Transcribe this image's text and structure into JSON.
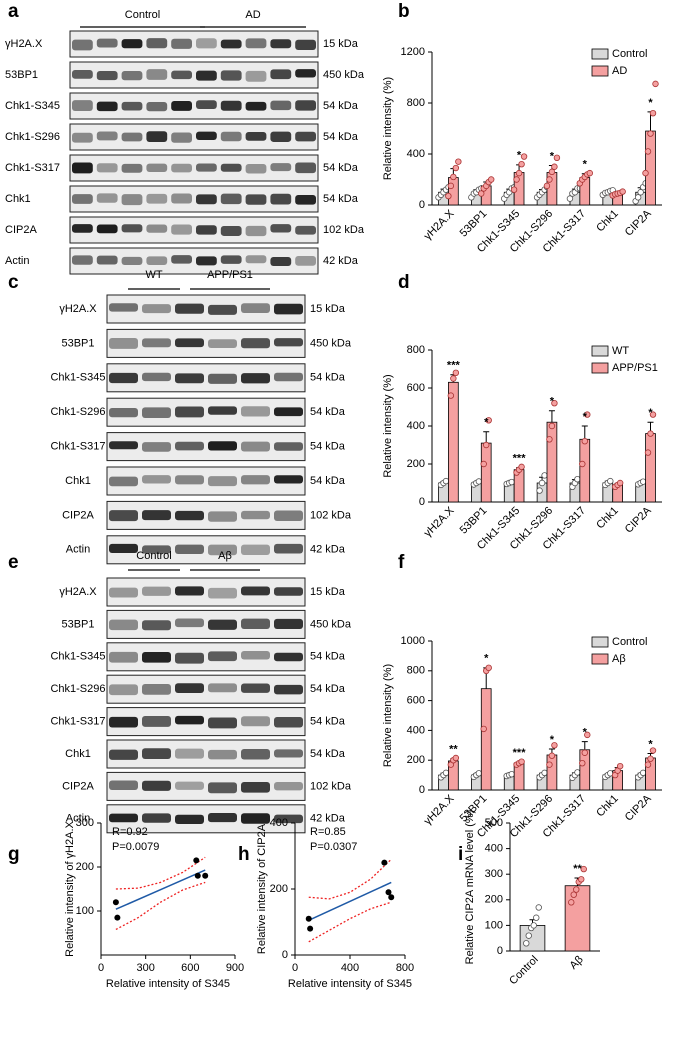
{
  "panel_letters": [
    "a",
    "b",
    "c",
    "d",
    "e",
    "f",
    "g",
    "h",
    "i"
  ],
  "blots": [
    {
      "group_labels": [
        "Control",
        "AD"
      ],
      "rows": [
        {
          "label": "γH2A.X",
          "size": "15 kDa"
        },
        {
          "label": "53BP1",
          "size": "450 kDa"
        },
        {
          "label": "Chk1-S345",
          "size": "54 kDa"
        },
        {
          "label": "Chk1-S296",
          "size": "54 kDa"
        },
        {
          "label": "Chk1-S317",
          "size": "54 kDa"
        },
        {
          "label": "Chk1",
          "size": "54 kDa"
        },
        {
          "label": "CIP2A",
          "size": "102 kDa"
        },
        {
          "label": "Actin",
          "size": "42 kDa"
        }
      ]
    },
    {
      "group_labels": [
        "WT",
        "APP/PS1"
      ],
      "rows": [
        {
          "label": "γH2A.X",
          "size": "15 kDa"
        },
        {
          "label": "53BP1",
          "size": "450 kDa"
        },
        {
          "label": "Chk1-S345",
          "size": "54 kDa"
        },
        {
          "label": "Chk1-S296",
          "size": "54 kDa"
        },
        {
          "label": "Chk1-S317",
          "size": "54 kDa"
        },
        {
          "label": "Chk1",
          "size": "54 kDa"
        },
        {
          "label": "CIP2A",
          "size": "102 kDa"
        },
        {
          "label": "Actin",
          "size": "42 kDa"
        }
      ]
    },
    {
      "group_labels": [
        "Control",
        "Aβ"
      ],
      "rows": [
        {
          "label": "γH2A.X",
          "size": "15 kDa"
        },
        {
          "label": "53BP1",
          "size": "450 kDa"
        },
        {
          "label": "Chk1-S345",
          "size": "54 kDa"
        },
        {
          "label": "Chk1-S296",
          "size": "54 kDa"
        },
        {
          "label": "Chk1-S317",
          "size": "54 kDa"
        },
        {
          "label": "Chk1",
          "size": "54 kDa"
        },
        {
          "label": "CIP2A",
          "size": "102 kDa"
        },
        {
          "label": "Actin",
          "size": "42 kDa"
        }
      ]
    }
  ],
  "chart_data": [
    {
      "type": "bar",
      "y_label": "Relative intensity (%)",
      "categories": [
        "γH2A.X",
        "53BP1",
        "Chk1-S345",
        "Chk1-S296",
        "Chk1-S317",
        "Chk1",
        "CIP2A"
      ],
      "ylim": [
        0,
        1200
      ],
      "yticks": [
        0,
        400,
        800,
        1200
      ],
      "legend": "top-right",
      "series": [
        {
          "name": "Control",
          "color": "#d9d9d9",
          "values": [
            100,
            100,
            100,
            100,
            100,
            100,
            100
          ],
          "errors": [
            25,
            20,
            25,
            22,
            25,
            8,
            35
          ],
          "significance": [
            null,
            null,
            null,
            null,
            null,
            null,
            null
          ],
          "points": [
            [
              60,
              80,
              100,
              120,
              140
            ],
            [
              60,
              90,
              100,
              120,
              130
            ],
            [
              50,
              80,
              100,
              130,
              140
            ],
            [
              60,
              80,
              100,
              120,
              140
            ],
            [
              50,
              90,
              100,
              130,
              130
            ],
            [
              80,
              95,
              100,
              110,
              115
            ],
            [
              30,
              60,
              100,
              140,
              170
            ]
          ]
        },
        {
          "name": "AD",
          "color": "#f4a0a0",
          "values": [
            215,
            150,
            255,
            255,
            215,
            90,
            580
          ],
          "errors": [
            70,
            30,
            60,
            55,
            30,
            10,
            150
          ],
          "significance": [
            null,
            null,
            "*",
            "*",
            "*",
            null,
            "*"
          ],
          "points": [
            [
              70,
              150,
              220,
              290,
              340
            ],
            [
              90,
              130,
              150,
              180,
              200
            ],
            [
              120,
              200,
              250,
              320,
              380
            ],
            [
              150,
              200,
              260,
              300,
              370
            ],
            [
              170,
              200,
              220,
              240,
              250
            ],
            [
              75,
              85,
              90,
              95,
              105
            ],
            [
              250,
              420,
              560,
              720,
              950
            ]
          ]
        }
      ]
    },
    {
      "type": "bar",
      "y_label": "Relative intensity (%)",
      "categories": [
        "γH2A.X",
        "53BP1",
        "Chk1-S345",
        "Chk1-S296",
        "Chk1-S317",
        "Chk1",
        "CIP2A"
      ],
      "ylim": [
        0,
        800
      ],
      "yticks": [
        0,
        200,
        400,
        600,
        800
      ],
      "legend": "top-right",
      "series": [
        {
          "name": "WT",
          "color": "#d9d9d9",
          "values": [
            100,
            100,
            100,
            100,
            100,
            100,
            100
          ],
          "errors": [
            8,
            6,
            5,
            30,
            18,
            10,
            6
          ],
          "significance": [
            null,
            null,
            null,
            null,
            null,
            null,
            null
          ],
          "points": [
            [
              90,
              100,
              110
            ],
            [
              92,
              100,
              108
            ],
            [
              95,
              100,
              105
            ],
            [
              60,
              100,
              140
            ],
            [
              80,
              100,
              120
            ],
            [
              90,
              100,
              110
            ],
            [
              93,
              100,
              107
            ]
          ]
        },
        {
          "name": "APP/PS1",
          "color": "#f4a0a0",
          "values": [
            630,
            310,
            170,
            420,
            330,
            90,
            360
          ],
          "errors": [
            40,
            60,
            10,
            60,
            70,
            8,
            60
          ],
          "significance": [
            "***",
            "*",
            "***",
            "*",
            "*",
            null,
            "*"
          ],
          "points": [
            [
              560,
              650,
              680
            ],
            [
              200,
              300,
              430
            ],
            [
              155,
              170,
              185
            ],
            [
              330,
              400,
              520
            ],
            [
              200,
              320,
              460
            ],
            [
              80,
              90,
              100
            ],
            [
              260,
              360,
              460
            ]
          ]
        }
      ]
    },
    {
      "type": "bar",
      "y_label": "Relative intensity (%)",
      "categories": [
        "γH2A.X",
        "53BP1",
        "Chk1-S345",
        "Chk1-S296",
        "Chk1-S317",
        "Chk1",
        "CIP2A"
      ],
      "ylim": [
        0,
        1000
      ],
      "yticks": [
        0,
        200,
        400,
        600,
        800,
        1000
      ],
      "legend": "top-right",
      "series": [
        {
          "name": "Control",
          "color": "#d9d9d9",
          "values": [
            100,
            100,
            100,
            100,
            100,
            100,
            100
          ],
          "errors": [
            12,
            10,
            6,
            12,
            15,
            10,
            12
          ],
          "significance": [
            null,
            null,
            null,
            null,
            null,
            null,
            null
          ],
          "points": [
            [
              85,
              100,
              115
            ],
            [
              88,
              100,
              112
            ],
            [
              94,
              100,
              106
            ],
            [
              85,
              100,
              115
            ],
            [
              82,
              100,
              118
            ],
            [
              88,
              100,
              112
            ],
            [
              85,
              100,
              115
            ]
          ]
        },
        {
          "name": "Aβ",
          "color": "#f4a0a0",
          "values": [
            195,
            680,
            180,
            235,
            270,
            130,
            215
          ],
          "errors": [
            15,
            140,
            8,
            40,
            55,
            20,
            30
          ],
          "significance": [
            "**",
            "*",
            "***",
            "*",
            "*",
            null,
            "*"
          ],
          "points": [
            [
              170,
              200,
              215
            ],
            [
              410,
              800,
              820
            ],
            [
              170,
              180,
              190
            ],
            [
              170,
              230,
              300
            ],
            [
              180,
              250,
              370
            ],
            [
              100,
              130,
              160
            ],
            [
              170,
              210,
              265
            ]
          ]
        }
      ]
    },
    {
      "type": "scatter",
      "x_label": "Relative intensity of S345",
      "y_label": "Relative intensity of γH2A.X",
      "annotations": [
        "R=0.92",
        "P=0.0079"
      ],
      "xlim": [
        0,
        900
      ],
      "xticks": [
        0,
        300,
        600,
        900
      ],
      "ylim": [
        0,
        300
      ],
      "yticks": [
        100,
        200,
        300
      ],
      "x": [
        100,
        110,
        640,
        650,
        700
      ],
      "y": [
        120,
        85,
        215,
        180,
        180
      ],
      "fit": {
        "x": [
          100,
          700
        ],
        "y": [
          104,
          193
        ]
      },
      "band": {
        "x": [
          100,
          250,
          400,
          550,
          700
        ],
        "upper": [
          150,
          152,
          165,
          188,
          222
        ],
        "lower": [
          58,
          85,
          120,
          148,
          165
        ]
      }
    },
    {
      "type": "scatter",
      "x_label": "Relative intensity of S345",
      "y_label": "Relative intensity of CIP2A",
      "annotations": [
        "R=0.85",
        "P=0.0307"
      ],
      "xlim": [
        0,
        800
      ],
      "xticks": [
        0,
        400,
        800
      ],
      "ylim": [
        0,
        400
      ],
      "yticks": [
        0,
        200,
        400
      ],
      "x": [
        100,
        110,
        650,
        680,
        700
      ],
      "y": [
        110,
        80,
        280,
        190,
        175
      ],
      "fit": {
        "x": [
          100,
          700
        ],
        "y": [
          105,
          220
        ]
      },
      "band": {
        "x": [
          100,
          250,
          400,
          550,
          700
        ],
        "upper": [
          175,
          170,
          190,
          230,
          290
        ],
        "lower": [
          40,
          75,
          110,
          140,
          160
        ]
      }
    },
    {
      "type": "bar",
      "y_label": "Relative CIP2A mRNA level (%)",
      "categories": [
        "Control",
        "Aβ"
      ],
      "ylim": [
        0,
        500
      ],
      "yticks": [
        0,
        100,
        200,
        300,
        400,
        500
      ],
      "series": [
        {
          "color": "#d9d9d9",
          "values": [
            100,
            null
          ],
          "errors": [
            22,
            null
          ],
          "significance": [
            null,
            null
          ],
          "points": [
            [
              30,
              60,
              90,
              100,
              130,
              170
            ],
            []
          ]
        },
        {
          "color": "#f4a0a0",
          "values": [
            null,
            255
          ],
          "errors": [
            null,
            30
          ],
          "significance": [
            null,
            "**"
          ],
          "points": [
            [],
            [
              190,
              220,
              240,
              270,
              280,
              320
            ]
          ]
        }
      ]
    }
  ]
}
